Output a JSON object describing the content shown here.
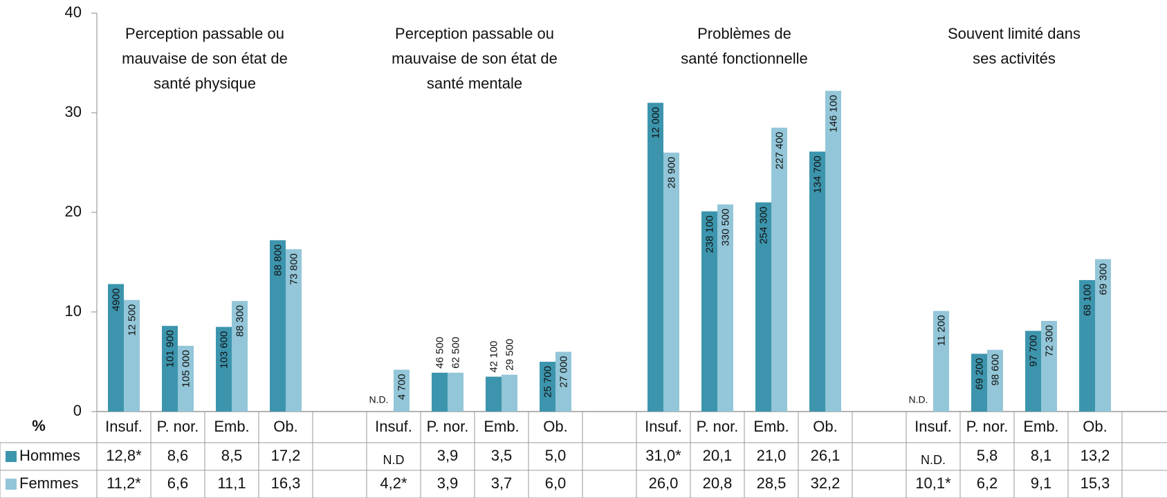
{
  "chart_data": {
    "type": "bar",
    "ylabel": "%",
    "ylim": [
      0,
      40
    ],
    "yticks": [
      0,
      10,
      20,
      30,
      40
    ],
    "group_titles": [
      [
        "Perception passable ou",
        "mauvaise de son état de",
        "santé physique"
      ],
      [
        "Perception passable ou",
        "mauvaise de son état de",
        "santé mentale"
      ],
      [
        "Problèmes de",
        "santé fonctionnelle"
      ],
      [
        "Souvent limité dans",
        "ses activités"
      ]
    ],
    "categories": [
      "Insuf.",
      "P. nor.",
      "Emb.",
      "Ob.",
      "Insuf.",
      "P. nor.",
      "Emb.",
      "Ob.",
      "Insuf.",
      "P. nor.",
      "Emb.",
      "Ob.",
      "Insuf.",
      "P. nor.",
      "Emb.",
      "Ob."
    ],
    "series": [
      {
        "name": "Hommes",
        "color": "#3c95ad",
        "values": [
          12.8,
          8.6,
          8.5,
          17.2,
          null,
          3.9,
          3.5,
          5.0,
          31.0,
          20.1,
          21.0,
          26.1,
          null,
          5.8,
          8.1,
          13.2
        ],
        "value_labels": [
          "12,8*",
          "8,6",
          "8,5",
          "17,2",
          "N.D",
          "3,9",
          "3,5",
          "5,0",
          "31,0*",
          "20,1",
          "21,0",
          "26,1",
          "N.D.",
          "5,8",
          "8,1",
          "13,2"
        ],
        "bar_labels": [
          "4900",
          "101 900",
          "103 600",
          "88 800",
          "N.D.",
          "46 500",
          "42 100",
          "25 700",
          "12 000",
          "238 100",
          "254 300",
          "134 700",
          "N.D.",
          "69 200",
          "97 700",
          "68 100"
        ]
      },
      {
        "name": "Femmes",
        "color": "#93c6d8",
        "values": [
          11.2,
          6.6,
          11.1,
          16.3,
          4.2,
          3.9,
          3.7,
          6.0,
          26.0,
          20.8,
          28.5,
          32.2,
          10.1,
          6.2,
          9.1,
          15.3
        ],
        "value_labels": [
          "11,2*",
          "6,6",
          "11,1",
          "16,3",
          "4,2*",
          "3,9",
          "3,7",
          "6,0",
          "26,0",
          "20,8",
          "28,5",
          "32,2",
          "10,1*",
          "6,2",
          "9,1",
          "15,3"
        ],
        "bar_labels": [
          "12 500",
          "105 000",
          "88 300",
          "73 800",
          "4 700",
          "62 500",
          "29 500",
          "27 000",
          "28 900",
          "330 500",
          "227 400",
          "146 100",
          "11 200",
          "98 600",
          "72 300",
          "69 300"
        ]
      }
    ]
  }
}
